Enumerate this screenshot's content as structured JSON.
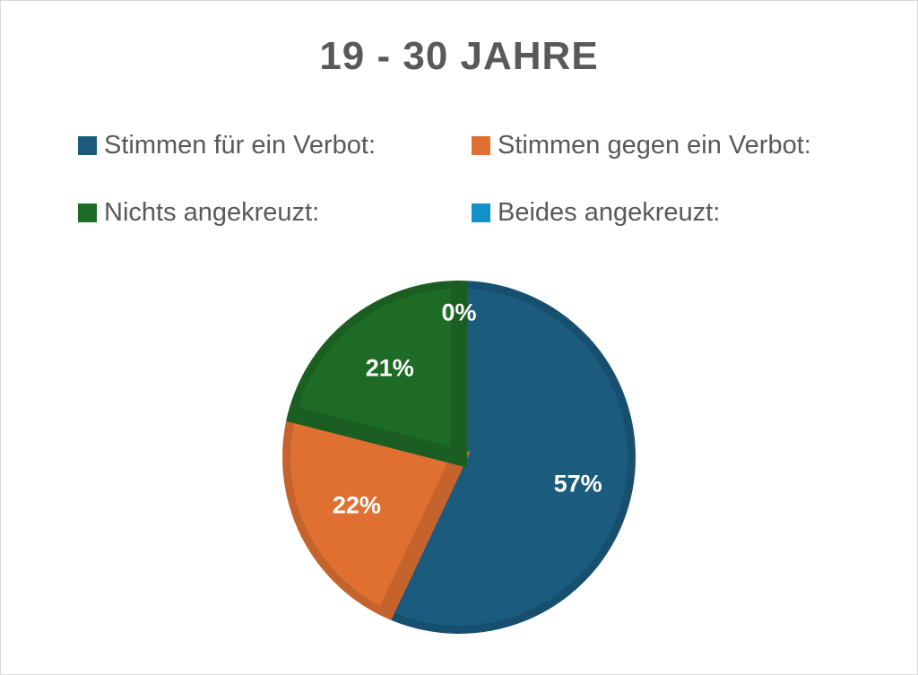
{
  "chart_data": {
    "type": "pie",
    "title": "19 - 30 JAHRE",
    "categories": [
      "Stimmen für ein Verbot:",
      "Stimmen gegen ein Verbot:",
      "Nichts angekreuzt:",
      "Beides angekreuzt:"
    ],
    "values": [
      57,
      22,
      21,
      0
    ],
    "labels": [
      "57%",
      "22%",
      "21%",
      "0%"
    ],
    "colors": [
      "#1a5b7e",
      "#e07032",
      "#1d6b25",
      "#1490c8"
    ],
    "legend_position": "top"
  }
}
